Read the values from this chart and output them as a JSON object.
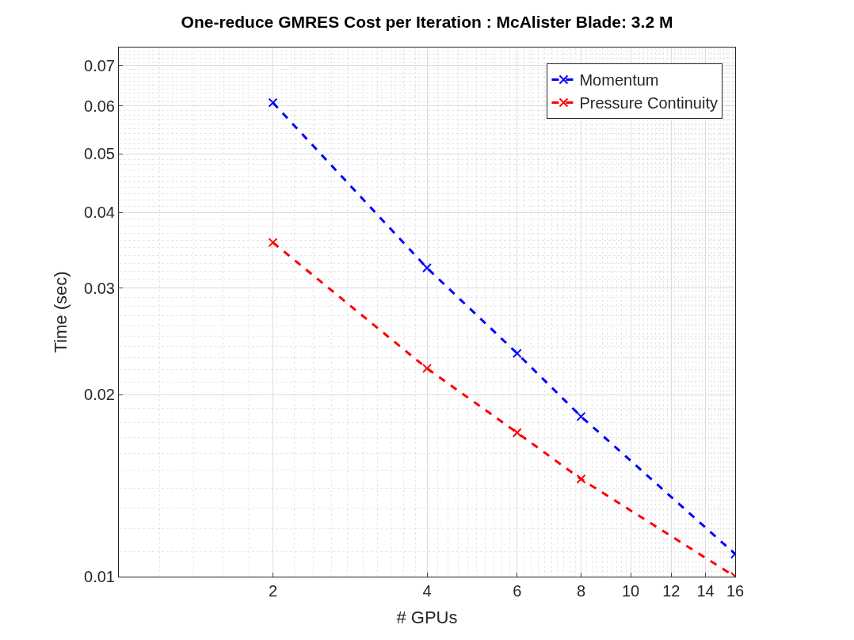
{
  "chart_data": {
    "type": "line",
    "title": "One-reduce GMRES Cost per Iteration : McAlister Blade: 3.2 M",
    "xlabel": "# GPUs",
    "ylabel": "Time (sec)",
    "x": [
      2,
      4,
      6,
      8,
      16
    ],
    "series": [
      {
        "name": "Momentum",
        "color": "#0000ff",
        "values": [
          0.0608,
          0.0324,
          0.0234,
          0.0184,
          0.0109
        ]
      },
      {
        "name": "Pressure Continuity",
        "color": "#ff0000",
        "values": [
          0.0357,
          0.0221,
          0.0173,
          0.0145,
          0.01
        ]
      }
    ],
    "log": "xy",
    "xlim": [
      1,
      16
    ],
    "ylim": [
      0.01,
      0.075
    ],
    "xticks": [
      2,
      4,
      6,
      8,
      10,
      12,
      14,
      16
    ],
    "yticks": [
      0.01,
      0.02,
      0.03,
      0.04,
      0.05,
      0.06,
      0.07
    ],
    "grid": true,
    "legend": "top right",
    "marker": "cross",
    "line_style": "dashed"
  }
}
